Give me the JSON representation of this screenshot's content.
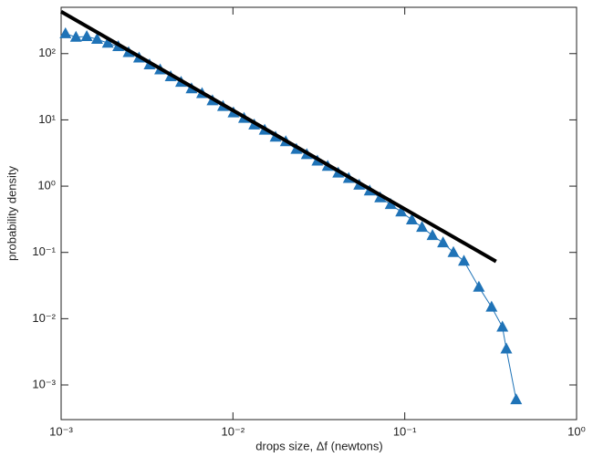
{
  "chart_data": {
    "type": "line",
    "x_label": "drops size, Δf (newtons)",
    "y_label": "probability density",
    "xscale": "log",
    "yscale": "log",
    "xlim": [
      0.001,
      1
    ],
    "ylim": [
      0.0003,
      500
    ],
    "xticks": [
      {
        "value": 0.001,
        "label": "10⁻³"
      },
      {
        "value": 0.01,
        "label": "10⁻²"
      },
      {
        "value": 0.1,
        "label": "10⁻¹"
      },
      {
        "value": 1,
        "label": "10⁰"
      }
    ],
    "yticks": [
      {
        "value": 0.001,
        "label": "10⁻³"
      },
      {
        "value": 0.01,
        "label": "10⁻²"
      },
      {
        "value": 0.1,
        "label": "10⁻¹"
      },
      {
        "value": 1,
        "label": "10⁰"
      },
      {
        "value": 10,
        "label": "10¹"
      },
      {
        "value": 100,
        "label": "10²"
      }
    ],
    "series": [
      {
        "color": "#1f73b7",
        "marker": "triangle",
        "x": [
          0.00106,
          0.00122,
          0.00141,
          0.00162,
          0.00187,
          0.00215,
          0.00247,
          0.00284,
          0.00327,
          0.00377,
          0.00434,
          0.00499,
          0.00574,
          0.00661,
          0.0076,
          0.00875,
          0.01007,
          0.0116,
          0.0133,
          0.0153,
          0.0177,
          0.0203,
          0.0234,
          0.0269,
          0.031,
          0.0356,
          0.041,
          0.0472,
          0.0543,
          0.0625,
          0.0719,
          0.0828,
          0.0953,
          0.11,
          0.126,
          0.145,
          0.167,
          0.192,
          0.221,
          0.27,
          0.32,
          0.37,
          0.39,
          0.445
        ],
        "values": [
          200,
          177,
          181,
          165,
          144,
          128,
          104,
          86,
          68,
          57,
          45,
          37,
          29.5,
          25,
          19.5,
          16,
          12.8,
          10.6,
          8.4,
          7.0,
          5.5,
          4.7,
          3.6,
          3.0,
          2.4,
          2.0,
          1.58,
          1.31,
          1.04,
          0.85,
          0.67,
          0.53,
          0.41,
          0.31,
          0.24,
          0.18,
          0.14,
          0.1,
          0.074,
          0.03,
          0.015,
          0.0075,
          0.0035,
          0.0006
        ]
      },
      {
        "color": "#000000",
        "marker": "none",
        "x": [
          0.001,
          0.34
        ],
        "values": [
          430,
          0.073
        ]
      }
    ]
  }
}
